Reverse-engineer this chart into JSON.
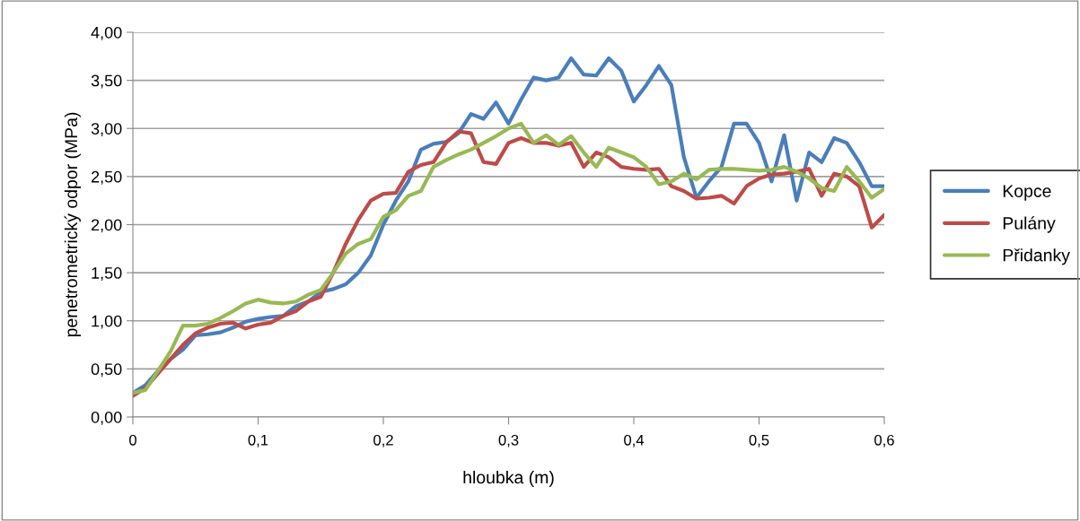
{
  "chart_data": {
    "type": "line",
    "xlabel": "hloubka (m)",
    "ylabel": "penetrometrický odpor (MPa)",
    "x": [
      0,
      0.01,
      0.02,
      0.03,
      0.04,
      0.05,
      0.06,
      0.07,
      0.08,
      0.09,
      0.1,
      0.11,
      0.12,
      0.13,
      0.14,
      0.15,
      0.16,
      0.17,
      0.18,
      0.19,
      0.2,
      0.21,
      0.22,
      0.23,
      0.24,
      0.25,
      0.26,
      0.27,
      0.28,
      0.29,
      0.3,
      0.31,
      0.32,
      0.33,
      0.34,
      0.35,
      0.36,
      0.37,
      0.38,
      0.39,
      0.4,
      0.41,
      0.42,
      0.43,
      0.44,
      0.45,
      0.46,
      0.47,
      0.48,
      0.49,
      0.5,
      0.51,
      0.52,
      0.53,
      0.54,
      0.55,
      0.56,
      0.57,
      0.58,
      0.59,
      0.6
    ],
    "series": [
      {
        "name": "Kopce",
        "color": "#4a7ebb",
        "values": [
          0.25,
          0.33,
          0.48,
          0.6,
          0.7,
          0.85,
          0.86,
          0.88,
          0.93,
          0.99,
          1.02,
          1.04,
          1.05,
          1.15,
          1.2,
          1.3,
          1.33,
          1.38,
          1.5,
          1.68,
          2.0,
          2.25,
          2.45,
          2.78,
          2.84,
          2.86,
          2.95,
          3.15,
          3.1,
          3.27,
          3.05,
          3.3,
          3.53,
          3.5,
          3.53,
          3.73,
          3.56,
          3.55,
          3.73,
          3.6,
          3.28,
          3.45,
          3.65,
          3.45,
          2.7,
          2.28,
          2.45,
          2.6,
          3.05,
          3.05,
          2.85,
          2.45,
          2.93,
          2.25,
          2.75,
          2.65,
          2.9,
          2.85,
          2.65,
          2.4,
          2.4
        ]
      },
      {
        "name": "Pulány",
        "color": "#be4b48",
        "values": [
          0.22,
          0.3,
          0.45,
          0.6,
          0.75,
          0.87,
          0.93,
          0.97,
          0.98,
          0.92,
          0.96,
          0.98,
          1.05,
          1.1,
          1.2,
          1.25,
          1.5,
          1.8,
          2.05,
          2.25,
          2.32,
          2.33,
          2.55,
          2.62,
          2.65,
          2.85,
          2.97,
          2.95,
          2.65,
          2.63,
          2.85,
          2.9,
          2.85,
          2.85,
          2.82,
          2.85,
          2.6,
          2.75,
          2.7,
          2.6,
          2.58,
          2.57,
          2.58,
          2.4,
          2.35,
          2.27,
          2.28,
          2.3,
          2.22,
          2.4,
          2.48,
          2.52,
          2.53,
          2.55,
          2.58,
          2.3,
          2.53,
          2.5,
          2.4,
          1.97,
          2.1
        ]
      },
      {
        "name": "Přidanky",
        "color": "#98b954",
        "values": [
          0.25,
          0.28,
          0.48,
          0.68,
          0.95,
          0.95,
          0.97,
          1.03,
          1.1,
          1.18,
          1.22,
          1.19,
          1.18,
          1.2,
          1.27,
          1.32,
          1.5,
          1.7,
          1.8,
          1.85,
          2.08,
          2.15,
          2.3,
          2.35,
          2.6,
          2.67,
          2.73,
          2.78,
          2.85,
          2.92,
          3.0,
          3.05,
          2.85,
          2.93,
          2.83,
          2.92,
          2.75,
          2.6,
          2.8,
          2.75,
          2.7,
          2.6,
          2.42,
          2.45,
          2.53,
          2.47,
          2.57,
          2.58,
          2.58,
          2.57,
          2.56,
          2.57,
          2.6,
          2.55,
          2.48,
          2.38,
          2.35,
          2.6,
          2.45,
          2.28,
          2.37
        ]
      }
    ],
    "xlim": [
      0,
      0.6
    ],
    "xticks": [
      0,
      {
        "value": 0.1,
        "label": "0,1"
      },
      {
        "value": 0.2,
        "label": "0,2"
      },
      {
        "value": 0.3,
        "label": "0,3"
      },
      {
        "value": 0.4,
        "label": "0,4"
      },
      {
        "value": 0.5,
        "label": "0,5"
      },
      {
        "value": 0.6,
        "label": "0,6"
      }
    ],
    "ylim": [
      0,
      4
    ],
    "yticks": [
      {
        "value": 0,
        "label": "0,00"
      },
      {
        "value": 0.5,
        "label": "0,50"
      },
      {
        "value": 1,
        "label": "1,00"
      },
      {
        "value": 1.5,
        "label": "1,50"
      },
      {
        "value": 2,
        "label": "2,00"
      },
      {
        "value": 2.5,
        "label": "2,50"
      },
      {
        "value": 3,
        "label": "3,00"
      },
      {
        "value": 3.5,
        "label": "3,50"
      },
      {
        "value": 4,
        "label": "4,00"
      }
    ],
    "grid": "y",
    "legend": "right",
    "marker": "none",
    "line_style": "solid"
  }
}
